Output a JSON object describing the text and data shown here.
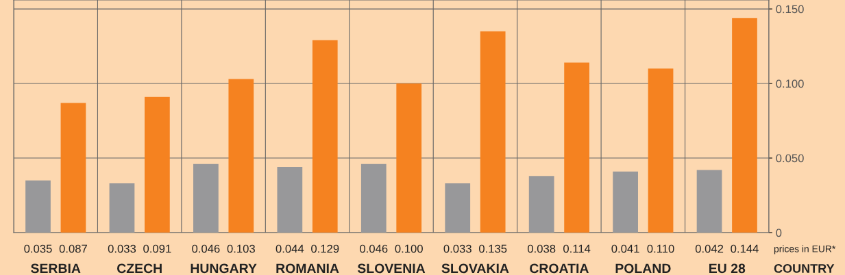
{
  "chart_data": {
    "type": "bar",
    "categories": [
      "SERBIA",
      "CZECH",
      "HUNGARY",
      "ROMANIA",
      "SLOVENIA",
      "SLOVAKIA",
      "CROATIA",
      "POLAND",
      "EU 28"
    ],
    "series": [
      {
        "color": "#98989a",
        "values": [
          0.035,
          0.033,
          0.046,
          0.044,
          0.046,
          0.033,
          0.038,
          0.041,
          0.042
        ],
        "value_labels": [
          "0.035",
          "0.033",
          "0.046",
          "0.044",
          "0.046",
          "0.033",
          "0.038",
          "0.041",
          "0.042"
        ]
      },
      {
        "color": "#f58220",
        "values": [
          0.087,
          0.091,
          0.103,
          0.129,
          0.1,
          0.135,
          0.114,
          0.11,
          0.144
        ],
        "value_labels": [
          "0.087",
          "0.091",
          "0.103",
          "0.129",
          "0.100",
          "0.135",
          "0.114",
          "0.110",
          "0.144"
        ]
      }
    ],
    "ylim": [
      0,
      0.156
    ],
    "yticks": [
      0,
      {
        "value": 0.05,
        "label": "0.050"
      },
      {
        "value": 0.1,
        "label": "0.100"
      },
      {
        "value": 0.15,
        "label": "0.150"
      }
    ],
    "grid": "y",
    "annotations": [
      "prices in EUR*",
      "COUNTRY"
    ]
  }
}
